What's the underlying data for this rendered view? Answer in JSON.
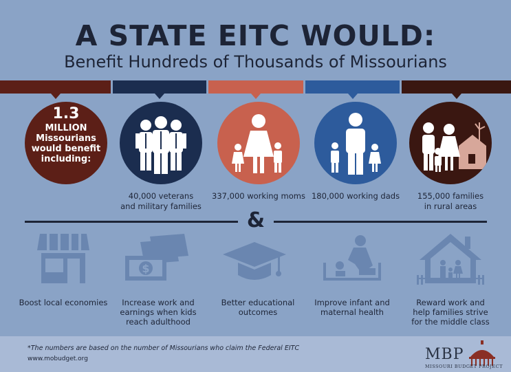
{
  "header": {
    "title": "A STATE EITC WOULD:",
    "subtitle": "Benefit Hundreds of Thousands of Missourians"
  },
  "colors": {
    "maroon": "#5c1f17",
    "navy": "#1b2d4f",
    "coral": "#c8614e",
    "blue": "#2d5b9c",
    "darkbrown": "#3a1711",
    "background": "#8aa3c6",
    "icon_gray": "#6a86b0"
  },
  "summary": {
    "big": "1.3",
    "line1": "MILLION",
    "line2": "Missourians",
    "line3": "would benefit",
    "line4": "including:"
  },
  "groups": [
    {
      "icon": "veterans-icon",
      "line1": "40,000 veterans",
      "line2": "and military families"
    },
    {
      "icon": "working-mom-icon",
      "line1": "337,000 working moms",
      "line2": ""
    },
    {
      "icon": "working-dad-icon",
      "line1": "180,000 working dads",
      "line2": ""
    },
    {
      "icon": "rural-family-icon",
      "line1": "155,000 families",
      "line2": "in rural areas"
    }
  ],
  "separator": "&",
  "benefits": [
    {
      "icon": "storefront-icon",
      "line1": "Boost local economies",
      "line2": "",
      "line3": ""
    },
    {
      "icon": "money-stack-icon",
      "line1": "Increase work and",
      "line2": "earnings when kids",
      "line3": "reach adulthood"
    },
    {
      "icon": "graduation-cap-icon",
      "line1": "Better educational outcomes",
      "line2": "",
      "line3": ""
    },
    {
      "icon": "mother-infant-icon",
      "line1": "Improve infant and",
      "line2": "maternal health",
      "line3": ""
    },
    {
      "icon": "family-home-icon",
      "line1": "Reward work and",
      "line2": "help families strive",
      "line3": "for the middle class"
    }
  ],
  "footer": {
    "note": "*The numbers are based on the number of Missourians who claim the Federal EITC",
    "url": "www.mobudget.org"
  },
  "logo": {
    "letters": "MBP",
    "name": "Missouri Budget Project"
  }
}
